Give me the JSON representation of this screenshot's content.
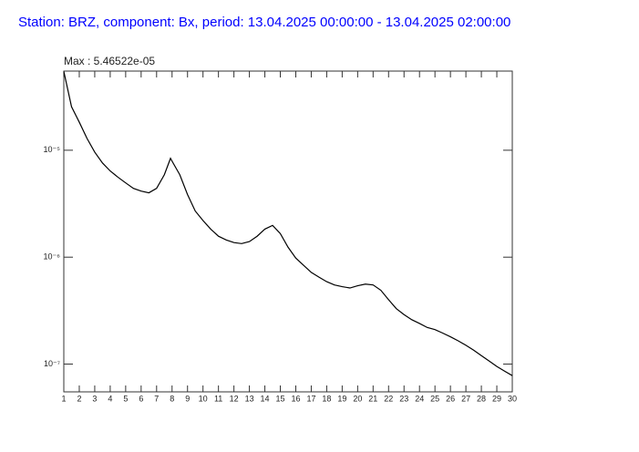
{
  "chart_data": {
    "type": "line",
    "title": "Station: BRZ, component: Bx, period: 13.04.2025 00:00:00 - 13.04.2025 02:00:00",
    "annotation": "Max : 5.46522e-05",
    "log_y": true,
    "color": "#000000",
    "title_color": "#0000ff",
    "xlim": [
      1,
      30
    ],
    "xticks": [
      1,
      2,
      3,
      4,
      5,
      6,
      7,
      8,
      9,
      10,
      11,
      12,
      13,
      14,
      15,
      16,
      17,
      18,
      19,
      20,
      21,
      22,
      23,
      24,
      25,
      26,
      27,
      28,
      29,
      30
    ],
    "ylim": [
      5.5e-08,
      5.5e-05
    ],
    "yticks": [
      {
        "value": 1e-07,
        "label": "10⁻⁷"
      },
      {
        "value": 1e-06,
        "label": "10⁻⁶"
      },
      {
        "value": 1e-05,
        "label": "10⁻⁵"
      }
    ],
    "x": [
      1,
      1.5,
      2,
      2.5,
      3,
      3.5,
      4,
      4.5,
      5,
      5.5,
      6,
      6.5,
      7,
      7.5,
      7.9,
      8,
      8.5,
      9,
      9.5,
      10,
      10.5,
      11,
      11.5,
      12,
      12.5,
      13,
      13.5,
      14,
      14.5,
      15,
      15.5,
      16,
      16.5,
      17,
      17.5,
      18,
      18.5,
      19,
      19.5,
      20,
      20.5,
      21,
      21.5,
      22,
      22.5,
      23,
      23.5,
      24,
      24.5,
      25,
      25.5,
      26,
      26.5,
      27,
      27.5,
      28,
      28.5,
      29,
      29.5,
      30
    ],
    "values": [
      5.46522e-05,
      2.55e-05,
      1.83e-05,
      1.29e-05,
      9.6e-06,
      7.6e-06,
      6.4e-06,
      5.6e-06,
      4.95e-06,
      4.4e-06,
      4.15e-06,
      4e-06,
      4.4e-06,
      5.9e-06,
      8.4e-06,
      7.9e-06,
      5.9e-06,
      3.85e-06,
      2.7e-06,
      2.2e-06,
      1.83e-06,
      1.57e-06,
      1.45e-06,
      1.37e-06,
      1.34e-06,
      1.4e-06,
      1.57e-06,
      1.83e-06,
      1.98e-06,
      1.66e-06,
      1.24e-06,
      9.8e-07,
      8.4e-07,
      7.2e-07,
      6.5e-07,
      5.9e-07,
      5.5e-07,
      5.3e-07,
      5.15e-07,
      5.4e-07,
      5.6e-07,
      5.5e-07,
      4.9e-07,
      4e-07,
      3.3e-07,
      2.9e-07,
      2.6e-07,
      2.4e-07,
      2.2e-07,
      2.1e-07,
      1.95e-07,
      1.8e-07,
      1.65e-07,
      1.5e-07,
      1.35e-07,
      1.2e-07,
      1.07e-07,
      9.5e-08,
      8.6e-08,
      7.8e-08
    ]
  }
}
